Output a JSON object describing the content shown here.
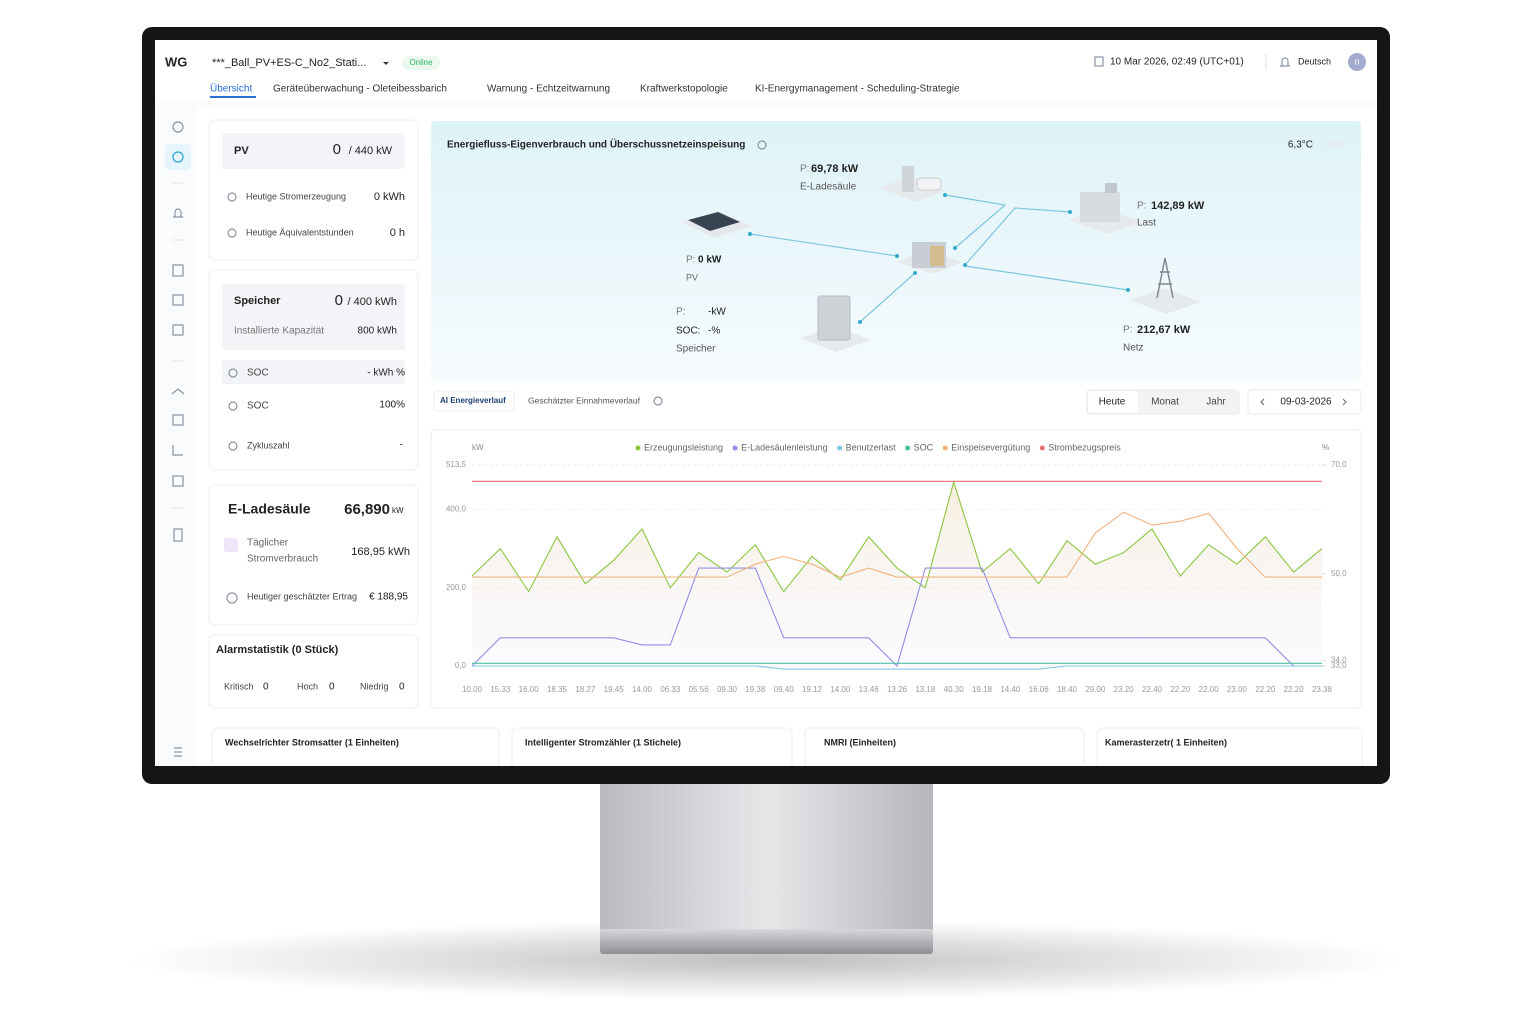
{
  "header": {
    "logo": "WG",
    "station": "***_Ball_PV+ES-C_No2_Stati...",
    "status": "Online",
    "datetime": "10 Mar 2026, 02:49 (UTC+01)",
    "language": "Deutsch",
    "avatar": "n"
  },
  "tabs": [
    "Übersicht",
    "Geräteüberwachung - Oleteibessbarich",
    "Warnung - Echtzeitwarnung",
    "Kraftwerkstopologie",
    "KI-Energymanagement - Scheduling-Strategie"
  ],
  "pv": {
    "title": "PV",
    "value": "0",
    "capacity": "/ 440 kW",
    "rows": [
      {
        "label": "Heutige Stromerzeugung",
        "value": "0 kWh"
      },
      {
        "label": "Heutige Äquivalentstunden",
        "value": "0 h"
      }
    ]
  },
  "storage": {
    "title": "Speicher",
    "value": "0",
    "capacity": "/ 400 kWh",
    "installed_label": "Installierte Kapazität",
    "installed_value": "800 kWh",
    "rows": [
      {
        "label": "SOC",
        "value": "- kWh %"
      },
      {
        "label": "SOC",
        "value": "100%"
      },
      {
        "label": "Zykluszahl",
        "value": "-"
      }
    ]
  },
  "charger": {
    "title": "E-Ladesäule",
    "value": "66,890",
    "unit": "kW",
    "consumption_label": [
      "Täglicher",
      "Stromverbrauch"
    ],
    "consumption_value": "168,95 kWh",
    "revenue_label": "Heutiger geschätzter Ertrag",
    "revenue_value": "€ 188,95"
  },
  "alarms": {
    "title": "Alarmstatistik (0 Stück)",
    "items": [
      {
        "label": "Kritisch",
        "value": "0"
      },
      {
        "label": "Hoch",
        "value": "0"
      },
      {
        "label": "Niedrig",
        "value": "0"
      }
    ]
  },
  "flow": {
    "title": "Energiefluss-Eigenverbrauch und Überschussnetzeinspeisung",
    "temperature": "6,3°C",
    "nodes": [
      {
        "prefix": "P:",
        "power": "69,78 kW",
        "label": "E-Ladesäule"
      },
      {
        "prefix": "P:",
        "power": "142,89 kW",
        "label": "Last"
      },
      {
        "prefix": "P:",
        "power": "0 kW",
        "label": "PV"
      },
      {
        "prefix": "P:",
        "power": "-kW",
        "soc_prefix": "SOC:",
        "soc": "-%",
        "label": "Speicher"
      },
      {
        "prefix": "P:",
        "power": "212,67 kW",
        "label": "Netz"
      }
    ]
  },
  "chart_tabs": [
    "AI Energieverlauf",
    "Geschätzter Einnahmeverlauf"
  ],
  "periods": [
    "Heute",
    "Monat",
    "Jahr"
  ],
  "date": "09-03-2026",
  "chart_data": {
    "type": "line",
    "y_label": "kW",
    "y2_label": "%",
    "grid": true,
    "categories": [
      "10.00",
      "15.33",
      "16.00",
      "18.35",
      "18.27",
      "19.45",
      "14.00",
      "06.33",
      "05.56",
      "09.30",
      "19.38",
      "09.40",
      "19.12",
      "14.00",
      "13.46",
      "13.26",
      "13.18",
      "40.30",
      "19.18",
      "14.40",
      "16.06",
      "18.40",
      "29.00",
      "23.20",
      "22.40",
      "22.20",
      "22.00",
      "23.00",
      "22.20",
      "22.20",
      "23.38"
    ],
    "ylim": [
      0,
      513.5
    ],
    "yticks": [
      {
        "value": 0,
        "label": "0,0"
      },
      {
        "value": 200,
        "label": "200,0"
      },
      {
        "value": 400,
        "label": "400,0"
      },
      {
        "value": 513.5,
        "label": "513,5"
      }
    ],
    "y2lim": [
      33,
      70
    ],
    "y2ticks": [
      {
        "value": 33,
        "label": "33,0"
      },
      {
        "value": 34,
        "label": "34,0"
      },
      {
        "value": 50,
        "label": "50,0"
      },
      {
        "value": 70,
        "label": "70,0"
      }
    ],
    "series": [
      {
        "name": "Erzeugungsleistung",
        "color": "#8cc63f",
        "values": [
          230,
          300,
          190,
          330,
          210,
          270,
          350,
          200,
          290,
          240,
          310,
          190,
          280,
          220,
          330,
          250,
          200,
          470,
          240,
          300,
          210,
          320,
          260,
          290,
          350,
          230,
          310,
          260,
          330,
          240,
          300
        ]
      },
      {
        "name": "E-Ladesäulenleistung",
        "color": "#8f8fe6",
        "values": [
          0,
          72,
          72,
          72,
          72,
          72,
          54,
          54,
          250,
          250,
          250,
          72,
          72,
          72,
          72,
          0,
          250,
          250,
          250,
          72,
          72,
          72,
          72,
          72,
          72,
          72,
          72,
          72,
          72,
          0,
          0
        ]
      },
      {
        "name": "Benutzerlast",
        "color": "#7ec8e3",
        "values": [
          0,
          0,
          0,
          0,
          0,
          0,
          0,
          0,
          0,
          0,
          0,
          -8,
          -8,
          -8,
          -8,
          -8,
          -8,
          -8,
          -8,
          -8,
          -8,
          0,
          0,
          0,
          0,
          0,
          0,
          0,
          0,
          0,
          0
        ]
      },
      {
        "name": "SOC",
        "color": "#4fc1a6",
        "axis": "y2",
        "values": [
          33.5,
          33.5,
          33.5,
          33.5,
          33.5,
          33.5,
          33.5,
          33.5,
          33.5,
          33.5,
          33.5,
          33.5,
          33.5,
          33.5,
          33.5,
          33.5,
          33.5,
          33.5,
          33.5,
          33.5,
          33.5,
          33.5,
          33.5,
          33.5,
          33.5,
          33.5,
          33.5,
          33.5,
          33.5,
          33.5,
          33.5
        ]
      },
      {
        "name": "Einspeisevergütung",
        "color": "#f0b37e",
        "values": [
          227,
          227,
          227,
          227,
          227,
          227,
          227,
          227,
          227,
          227,
          260,
          280,
          260,
          227,
          250,
          227,
          227,
          227,
          227,
          227,
          227,
          227,
          340,
          393,
          360,
          370,
          390,
          300,
          227,
          227,
          227
        ]
      },
      {
        "name": "Strombezugspreis",
        "color": "#e8707a",
        "axis": "y2",
        "values": [
          67,
          67,
          67,
          67,
          67,
          67,
          67,
          67,
          67,
          67,
          67,
          67,
          67,
          67,
          67,
          67,
          67,
          67,
          67,
          67,
          67,
          67,
          67,
          67,
          67,
          67,
          67,
          67,
          67,
          67,
          67
        ]
      }
    ]
  },
  "device_cards": [
    "Wechselrichter Stromsatter (1 Einheiten)",
    "Intelligenter Stromzähler (1 Stichele)",
    "NMRI (Einheiten)",
    "Kamerasterzetr( 1 Einheiten)"
  ]
}
